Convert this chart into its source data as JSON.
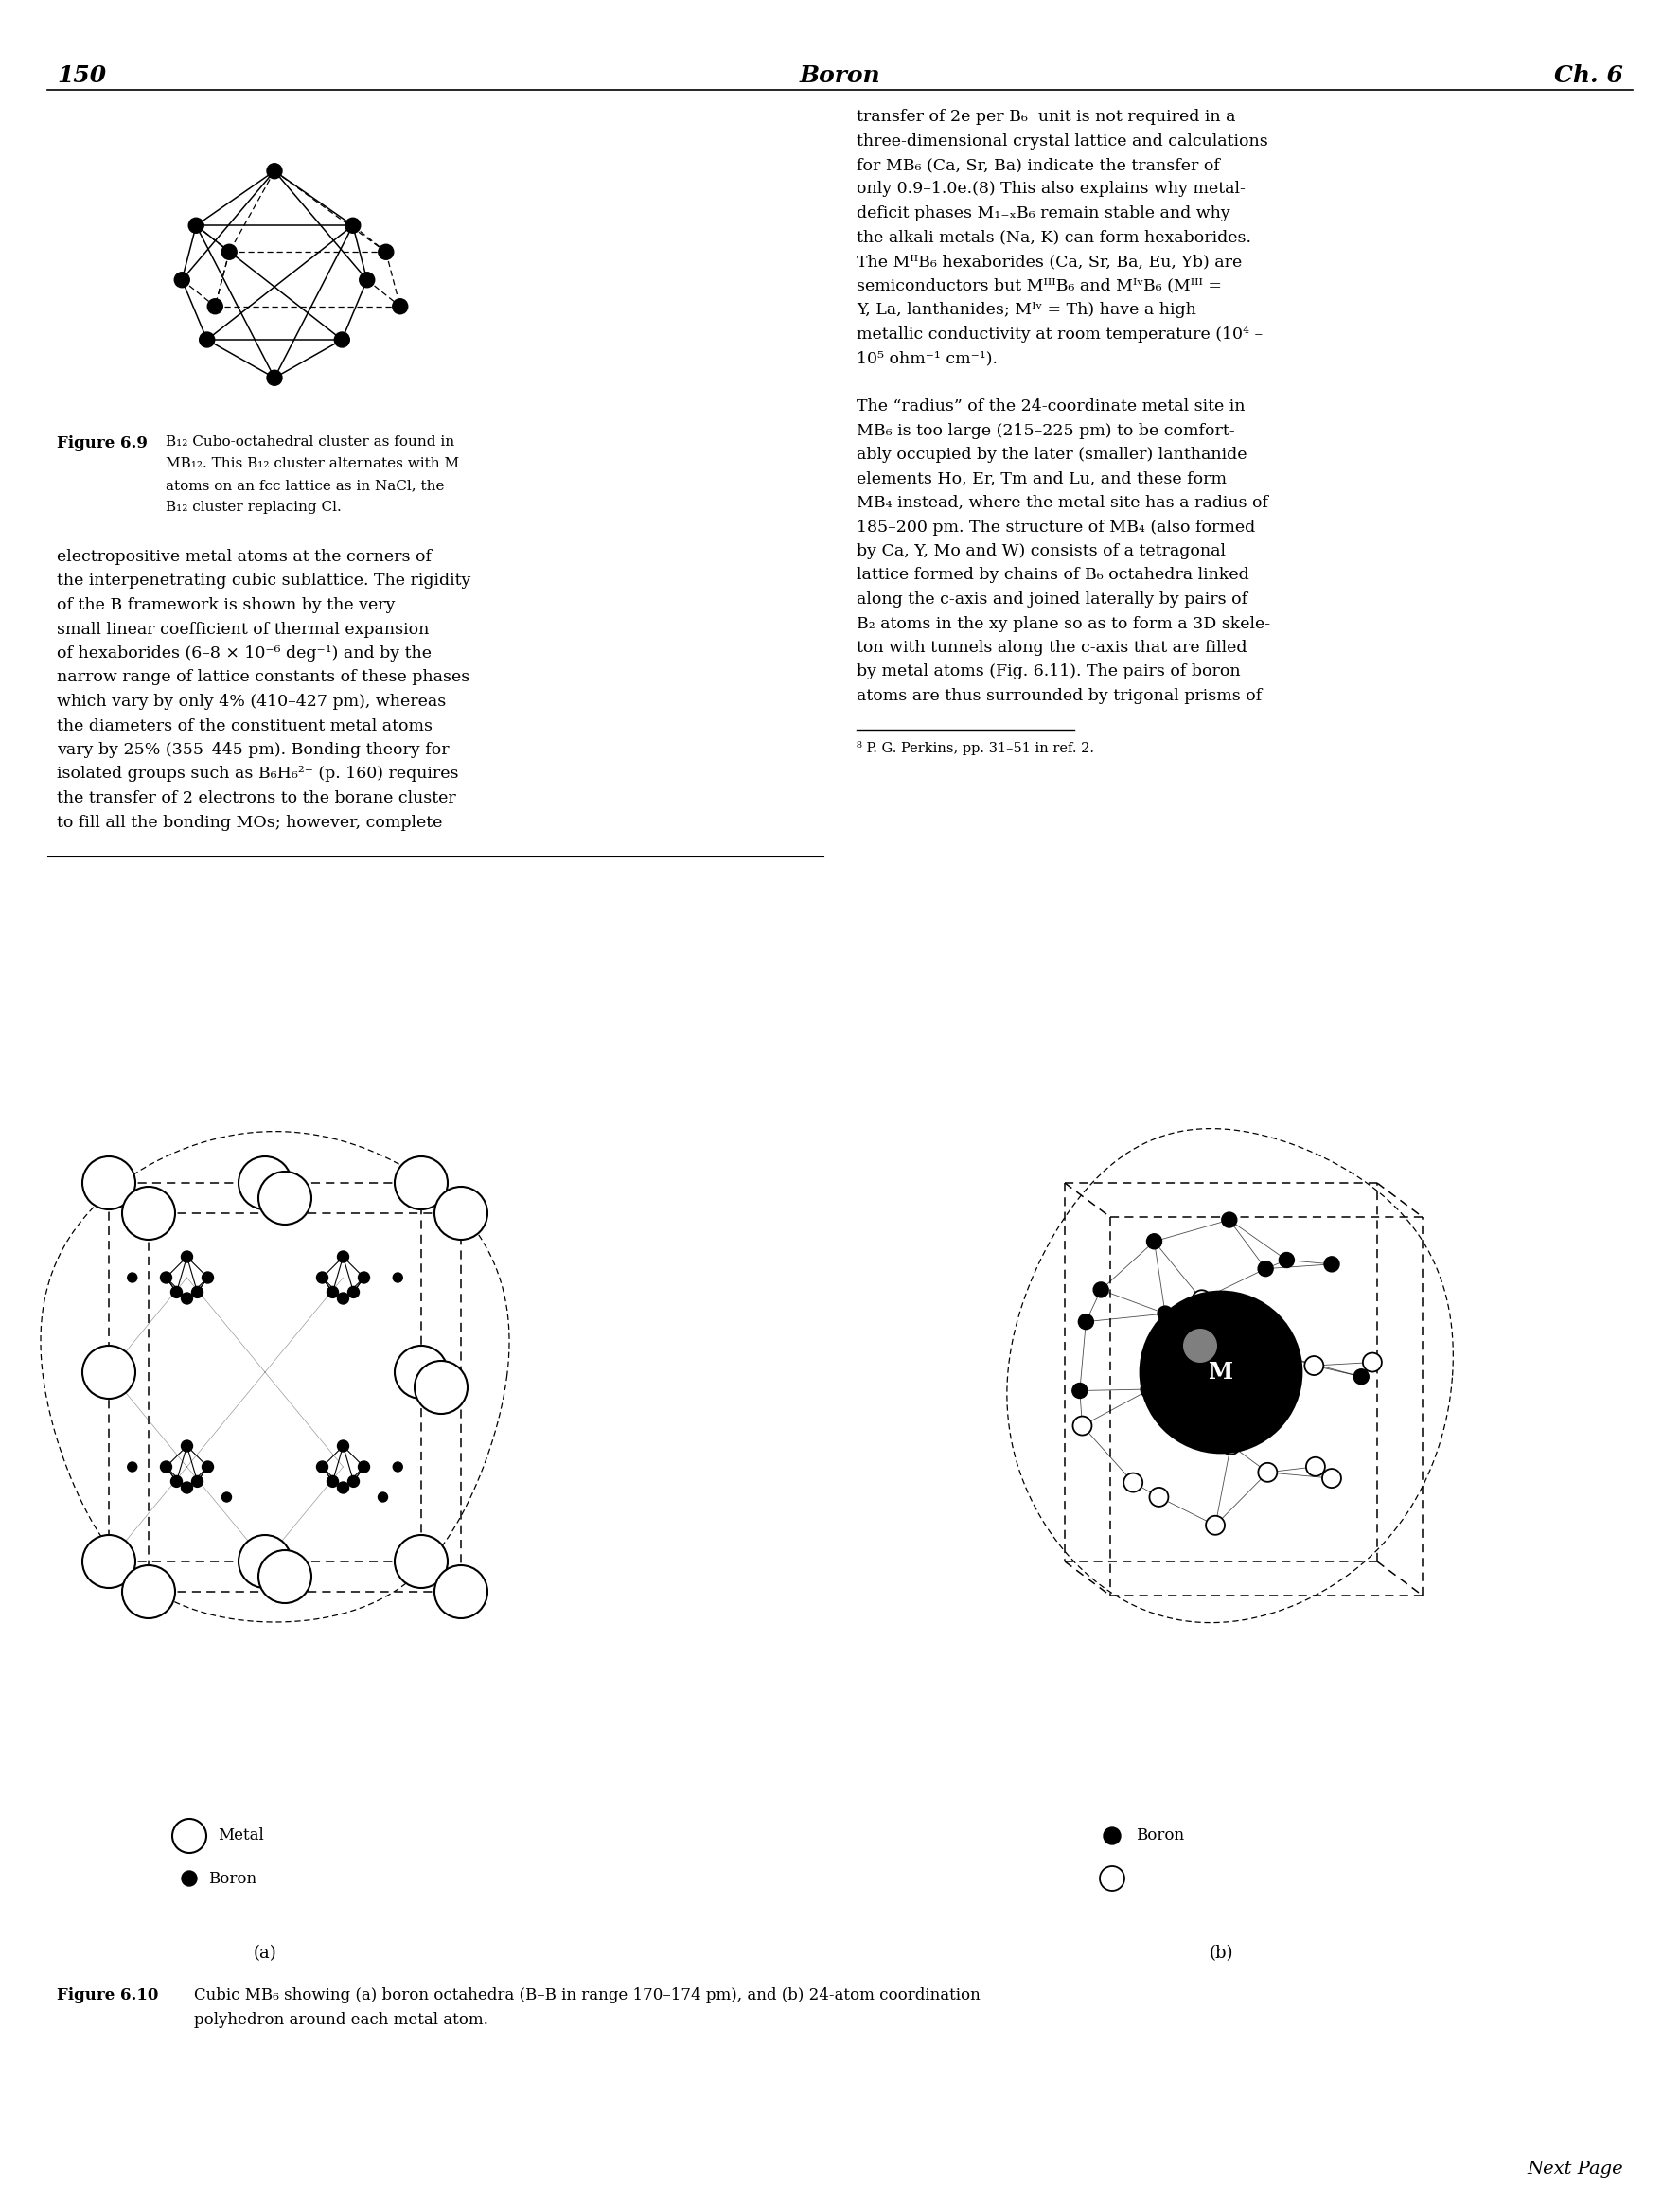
{
  "page_number": "150",
  "page_title": "Boron",
  "chapter": "Ch. 6",
  "right_text_lines": [
    "transfer of 2e per B₆  unit is not required in a",
    "three-dimensional crystal lattice and calculations",
    "for MB₆ (Ca, Sr, Ba) indicate the transfer of",
    "only 0.9–1.0e.(8) This also explains why metal-",
    "deficit phases M₁₋ₓB₆ remain stable and why",
    "the alkali metals (Na, K) can form hexaborides.",
    "The MᴵᴵB₆ hexaborides (Ca, Sr, Ba, Eu, Yb) are",
    "semiconductors but MᴵᴵᴵB₆ and MᴵᵛB₆ (Mᴵᴵᴵ =",
    "Y, La, lanthanides; Mᴵᵛ = Th) have a high",
    "metallic conductivity at room temperature (10⁴ –",
    "10⁵ ohm⁻¹ cm⁻¹).",
    "",
    "The “radius” of the 24-coordinate metal site in",
    "MB₆ is too large (215–225 pm) to be comfort-",
    "ably occupied by the later (smaller) lanthanide",
    "elements Ho, Er, Tm and Lu, and these form",
    "MB₄ instead, where the metal site has a radius of",
    "185–200 pm. The structure of MB₄ (also formed",
    "by Ca, Y, Mo and W) consists of a tetragonal",
    "lattice formed by chains of B₆ octahedra linked",
    "along the c-axis and joined laterally by pairs of",
    "B₂ atoms in the xy plane so as to form a 3D skele-",
    "ton with tunnels along the c-axis that are filled",
    "by metal atoms (Fig. 6.11). The pairs of boron",
    "atoms are thus surrounded by trigonal prisms of"
  ],
  "footnote": "⁸ P. G. Perkins, pp. 31–51 in ref. 2.",
  "left_body_lines": [
    "electropositive metal atoms at the corners of",
    "the interpenetrating cubic sublattice. The rigidity",
    "of the B framework is shown by the very",
    "small linear coefficient of thermal expansion",
    "of hexaborides (6–8 × 10⁻⁶ deg⁻¹) and by the",
    "narrow range of lattice constants of these phases",
    "which vary by only 4% (410–427 pm), whereas",
    "the diameters of the constituent metal atoms",
    "vary by 25% (355–445 pm). Bonding theory for",
    "isolated groups such as B₆H₆²⁻ (p. 160) requires",
    "the transfer of 2 electrons to the borane cluster",
    "to fill all the bonding MOs; however, complete"
  ],
  "fig69_bold": "Figure 6.9",
  "fig69_lines": [
    "B₁₂ Cubo-octahedral cluster as found in",
    "MB₁₂. This B₁₂ cluster alternates with M",
    "atoms on an fcc lattice as in NaCl, the",
    "B₁₂ cluster replacing Cl."
  ],
  "fig610_bold": "Figure 6.10",
  "fig610_line1": "Cubic MB₆ showing (a) boron octahedra (B–B in range 170–174 pm), and (b) 24-atom coordination",
  "fig610_line2": "polyhedron around each metal atom.",
  "label_a": "(a)",
  "label_b": "(b)",
  "legend_a_metal": "Metal",
  "legend_a_boron": "Boron",
  "legend_b_boron": "Boron",
  "metal_label": "M",
  "next_page": "Next Page"
}
